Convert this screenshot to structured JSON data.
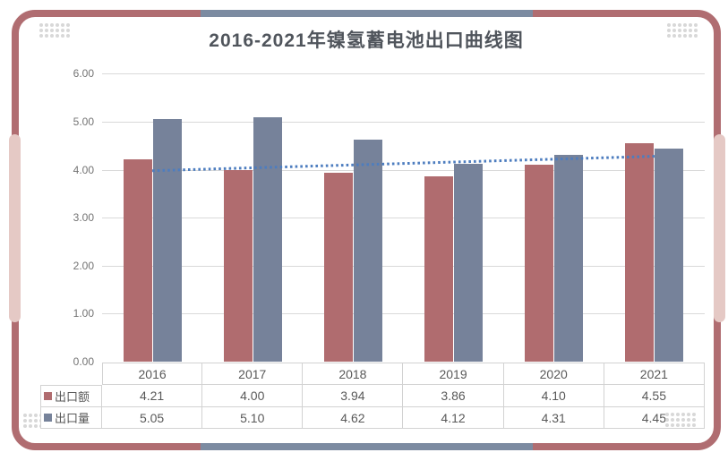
{
  "page": {
    "background": "#FFFFFF"
  },
  "frame": {
    "border_color": "#B06D71",
    "accent_color": "#7C8BA1",
    "handle_color": "#E5C9C5",
    "dots_color": "#D8D8D8"
  },
  "chart_data": {
    "type": "bar",
    "title": "2016-2021年镍氢蓄电池出口曲线图",
    "title_color": "#50555C",
    "categories": [
      "2016",
      "2017",
      "2018",
      "2019",
      "2020",
      "2021"
    ],
    "series": [
      {
        "name": "出口额",
        "color": "#B06C6F",
        "values": [
          4.21,
          4.0,
          3.94,
          3.86,
          4.1,
          4.55
        ]
      },
      {
        "name": "出口量",
        "color": "#76829A",
        "values": [
          5.05,
          5.1,
          4.62,
          4.12,
          4.31,
          4.45
        ]
      }
    ],
    "trendline": {
      "for_series": "出口额",
      "style": "dotted",
      "color": "#4D7DBF",
      "start_value": 3.98,
      "end_value": 4.28
    },
    "ylim": [
      0,
      6
    ],
    "ytick_step": 1,
    "ytick_labels": [
      "0.00",
      "1.00",
      "2.00",
      "3.00",
      "4.00",
      "5.00",
      "6.00"
    ],
    "grid": true,
    "gridline_color": "#D9D9D9",
    "legend_position": "data-table-left",
    "data_table_shown": true
  }
}
